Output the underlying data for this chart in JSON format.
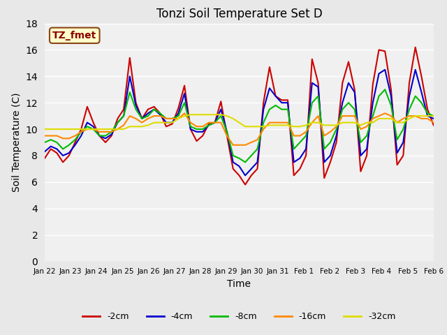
{
  "title": "Tonzi Soil Temperature Set D",
  "xlabel": "Time",
  "ylabel": "Soil Temperature (C)",
  "ylim": [
    0,
    18
  ],
  "yticks": [
    0,
    2,
    4,
    6,
    8,
    10,
    12,
    14,
    16,
    18
  ],
  "xtick_labels": [
    "Jan 22",
    "Jan 23",
    "Jan 24",
    "Jan 25",
    "Jan 26",
    "Jan 27",
    "Jan 28",
    "Jan 29",
    "Jan 30",
    "Jan 31",
    "Feb 1",
    "Feb 2",
    "Feb 3",
    "Feb 4",
    "Feb 5",
    "Feb 6"
  ],
  "annotation_text": "TZ_fmet",
  "annotation_color": "#8B0000",
  "annotation_bg": "#FFFFCC",
  "annotation_border": "#8B4513",
  "series": {
    "neg2cm": {
      "label": "-2cm",
      "color": "#CC0000",
      "linewidth": 1.5,
      "values": [
        7.8,
        8.5,
        8.2,
        7.5,
        8.0,
        9.0,
        10.0,
        11.7,
        10.5,
        9.5,
        9.0,
        9.5,
        10.8,
        11.5,
        15.4,
        12.0,
        10.8,
        11.5,
        11.7,
        11.2,
        10.2,
        10.4,
        11.6,
        13.3,
        10.0,
        9.1,
        9.5,
        10.4,
        10.5,
        12.1,
        9.5,
        7.0,
        6.5,
        5.8,
        6.5,
        7.0,
        12.0,
        14.7,
        12.5,
        12.2,
        12.2,
        6.5,
        7.0,
        8.0,
        15.3,
        13.5,
        6.3,
        7.5,
        9.0,
        13.5,
        15.1,
        13.0,
        6.8,
        8.0,
        13.4,
        16.0,
        15.9,
        13.0,
        7.3,
        8.0,
        13.5,
        16.2,
        14.0,
        11.5,
        10.3
      ]
    },
    "neg4cm": {
      "label": "-4cm",
      "color": "#0000CC",
      "linewidth": 1.5,
      "values": [
        8.3,
        8.7,
        8.5,
        8.0,
        8.2,
        8.8,
        9.5,
        10.5,
        10.2,
        9.5,
        9.3,
        9.6,
        10.5,
        11.0,
        14.0,
        11.8,
        10.8,
        11.2,
        11.5,
        11.1,
        10.5,
        10.5,
        11.2,
        12.7,
        10.0,
        9.8,
        9.8,
        10.3,
        10.5,
        11.5,
        9.8,
        7.5,
        7.2,
        6.5,
        7.0,
        7.5,
        11.5,
        13.1,
        12.5,
        12.0,
        12.0,
        7.5,
        7.8,
        8.5,
        13.5,
        13.2,
        7.5,
        8.0,
        9.5,
        12.0,
        13.5,
        12.8,
        8.0,
        8.5,
        12.0,
        14.2,
        14.5,
        12.5,
        8.2,
        9.0,
        12.5,
        14.5,
        12.8,
        11.0,
        10.8
      ]
    },
    "neg8cm": {
      "label": "-8cm",
      "color": "#00BB00",
      "linewidth": 1.5,
      "values": [
        9.0,
        9.2,
        9.0,
        8.5,
        8.8,
        9.2,
        9.8,
        10.2,
        10.0,
        9.5,
        9.5,
        9.8,
        10.5,
        11.0,
        12.8,
        11.5,
        10.8,
        11.0,
        11.5,
        11.2,
        10.8,
        10.8,
        11.0,
        12.0,
        10.2,
        10.0,
        10.0,
        10.3,
        10.5,
        11.0,
        9.8,
        8.0,
        7.8,
        7.5,
        8.0,
        8.5,
        10.5,
        11.5,
        11.8,
        11.5,
        11.5,
        8.5,
        9.0,
        9.5,
        12.0,
        12.5,
        8.5,
        9.0,
        10.0,
        11.5,
        12.0,
        11.5,
        9.0,
        9.5,
        11.0,
        12.5,
        13.0,
        11.8,
        9.2,
        10.0,
        11.5,
        12.5,
        12.0,
        11.2,
        11.0
      ]
    },
    "neg16cm": {
      "label": "-16cm",
      "color": "#FF8800",
      "linewidth": 1.5,
      "values": [
        9.5,
        9.5,
        9.5,
        9.3,
        9.3,
        9.5,
        9.8,
        10.0,
        10.0,
        9.8,
        9.8,
        9.8,
        10.0,
        10.3,
        11.0,
        10.8,
        10.5,
        10.8,
        11.0,
        11.0,
        10.8,
        10.8,
        10.8,
        11.2,
        10.5,
        10.2,
        10.2,
        10.5,
        10.5,
        10.5,
        9.5,
        8.8,
        8.8,
        8.8,
        9.0,
        9.2,
        10.0,
        10.5,
        10.5,
        10.5,
        10.5,
        9.5,
        9.5,
        9.8,
        10.5,
        11.0,
        9.5,
        9.8,
        10.2,
        11.0,
        11.0,
        11.0,
        10.0,
        10.2,
        10.8,
        11.0,
        11.2,
        11.0,
        10.5,
        10.8,
        11.0,
        11.0,
        10.8,
        10.8,
        10.5
      ]
    },
    "neg32cm": {
      "label": "-32cm",
      "color": "#DDDD00",
      "linewidth": 1.5,
      "values": [
        10.0,
        10.0,
        10.0,
        10.0,
        10.0,
        10.0,
        10.0,
        10.0,
        10.0,
        10.0,
        10.0,
        10.0,
        10.0,
        10.0,
        10.2,
        10.2,
        10.2,
        10.3,
        10.5,
        10.5,
        10.5,
        10.5,
        10.8,
        11.0,
        11.1,
        11.1,
        11.1,
        11.1,
        11.1,
        11.1,
        11.0,
        10.8,
        10.5,
        10.2,
        10.2,
        10.2,
        10.2,
        10.3,
        10.3,
        10.3,
        10.3,
        10.2,
        10.2,
        10.3,
        10.5,
        10.5,
        10.3,
        10.3,
        10.3,
        10.5,
        10.5,
        10.5,
        10.3,
        10.5,
        10.5,
        10.8,
        10.8,
        10.8,
        10.5,
        10.5,
        10.8,
        11.0,
        11.0,
        11.0,
        11.0
      ]
    }
  },
  "n_points": 65,
  "background_color": "#E8E8E8",
  "plot_bg": "#F0F0F0"
}
